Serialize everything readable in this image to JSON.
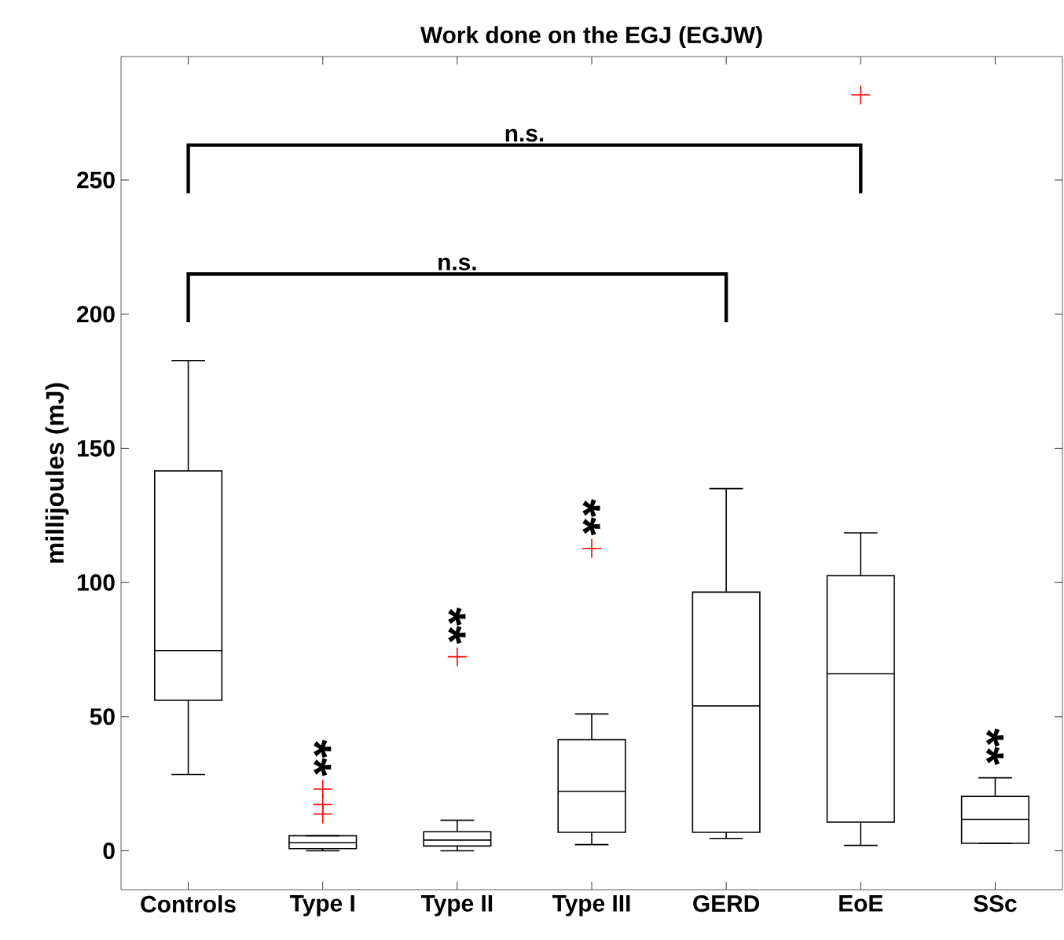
{
  "chart_data": {
    "type": "box",
    "title": "Work done on the EGJ (EGJW)",
    "ylabel": "millijoules (mJ)",
    "categories": [
      "Controls",
      "Type I",
      "Type II",
      "Type III",
      "GERD",
      "EoE",
      "SSc"
    ],
    "boxes": [
      {
        "low": 28.4,
        "q1": 56.1,
        "median": 74.6,
        "q3": 141.6,
        "high": 182.7
      },
      {
        "low": 0,
        "q1": 0.8,
        "median": 3,
        "q3": 5.6,
        "high": 5.6,
        "outliers": [
          23,
          17.3,
          13.7
        ]
      },
      {
        "low": 0,
        "q1": 1.8,
        "median": 4,
        "q3": 7.1,
        "high": 11.4,
        "outliers": [
          72.3
        ]
      },
      {
        "low": 2.3,
        "q1": 6.9,
        "median": 22.1,
        "q3": 41.4,
        "high": 51,
        "outliers": [
          112.7
        ]
      },
      {
        "low": 4.6,
        "q1": 6.9,
        "median": 54,
        "q3": 96.4,
        "high": 135
      },
      {
        "low": 2,
        "q1": 10.7,
        "median": 66,
        "q3": 102.5,
        "high": 118.5,
        "outliers": [
          281.7
        ]
      },
      {
        "low": 2.8,
        "q1": 2.8,
        "median": 11.7,
        "q3": 20.3,
        "high": 27.2
      }
    ],
    "ylim": [
      -14.5,
      296
    ],
    "yticks": [
      0,
      50,
      100,
      150,
      200,
      250
    ],
    "annotations": [
      "n.s.",
      "n.s.",
      "**",
      "**",
      "**",
      "**"
    ]
  }
}
